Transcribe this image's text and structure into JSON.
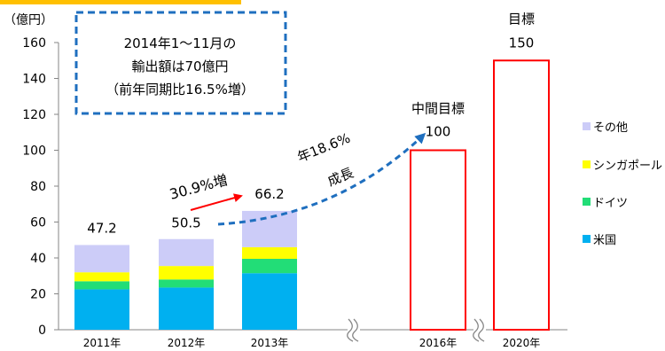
{
  "chart_data": {
    "type": "bar",
    "unit_label": "（億円）",
    "ylim": [
      0,
      160
    ],
    "yticks": [
      "0",
      "20",
      "40",
      "60",
      "80",
      "100",
      "120",
      "140",
      "160"
    ],
    "categories": [
      "2011年",
      "2012年",
      "2013年",
      "2016年",
      "2020年"
    ],
    "stack_order": [
      "米国",
      "ドイツ",
      "シンガポール",
      "その他"
    ],
    "series": [
      {
        "name": "米国",
        "color": "#00b0f0",
        "values": [
          22.5,
          23.5,
          31.5,
          null,
          null
        ]
      },
      {
        "name": "ドイツ",
        "color": "#22dd77",
        "values": [
          4.5,
          4.5,
          8.0,
          null,
          null
        ]
      },
      {
        "name": "シンガポール",
        "color": "#ffff00",
        "values": [
          5.0,
          7.5,
          6.5,
          null,
          null
        ]
      },
      {
        "name": "その他",
        "color": "#ccccf8",
        "values": [
          15.2,
          15.0,
          20.2,
          null,
          null
        ]
      }
    ],
    "legend_order": [
      "その他",
      "シンガポール",
      "ドイツ",
      "米国"
    ],
    "totals": [
      "47.2",
      "50.5",
      "66.2",
      "100",
      "150"
    ],
    "targets": [
      {
        "category_index": 3,
        "value": 100,
        "label": "中間目標",
        "value_label": "100"
      },
      {
        "category_index": 4,
        "value": 150,
        "label": "目標",
        "value_label": "150"
      }
    ],
    "axis_breaks": [
      {
        "between": [
          2,
          3
        ]
      },
      {
        "between": [
          3,
          4
        ]
      }
    ],
    "annotations": {
      "box_lines": [
        "2014年1～11月の",
        "輸出額は70億円",
        "（前年同期比16.5%増）"
      ],
      "growth_red": "30.9%増",
      "growth_blue": [
        "年18.6%",
        "成長"
      ]
    },
    "grid": false,
    "legend_position": "right",
    "colors": {
      "target_outline": "#ff0000",
      "arrow_red": "#ff0000",
      "arrow_blue": "#1f6fbf",
      "box_border": "#1f6fbf",
      "accent_bar": "#ffc000"
    }
  }
}
